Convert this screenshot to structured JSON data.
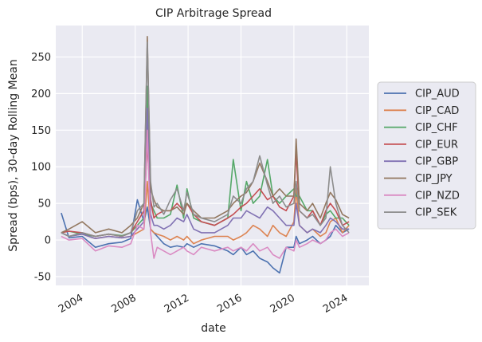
{
  "chart_data": {
    "type": "line",
    "title": "CIP Arbitrage Spread",
    "xlabel": "date",
    "ylabel": "Spread (bps), 30-day Rolling Mean",
    "xlim": [
      "2002-01-01",
      "2025-09-01"
    ],
    "ylim": [
      -62,
      293
    ],
    "grid": true,
    "legend_position": "center-right outside",
    "x_ticks": [
      "2004",
      "2008",
      "2012",
      "2016",
      "2020",
      "2024"
    ],
    "y_ticks": [
      -50,
      0,
      50,
      100,
      150,
      200,
      250
    ],
    "x_dates": [
      "2002-06-01",
      "2003-01-01",
      "2004-01-01",
      "2005-01-01",
      "2006-01-01",
      "2007-01-01",
      "2007-09-01",
      "2008-03-01",
      "2008-09-01",
      "2008-12-01",
      "2009-03-01",
      "2009-06-01",
      "2009-09-01",
      "2010-03-01",
      "2010-09-01",
      "2011-03-01",
      "2011-09-01",
      "2011-12-01",
      "2012-06-01",
      "2013-01-01",
      "2014-01-01",
      "2015-01-01",
      "2015-06-01",
      "2016-01-01",
      "2016-06-01",
      "2016-12-01",
      "2017-06-01",
      "2018-01-01",
      "2018-06-01",
      "2018-12-01",
      "2019-06-01",
      "2020-01-01",
      "2020-03-01",
      "2020-06-01",
      "2021-01-01",
      "2021-06-01",
      "2022-01-01",
      "2022-06-01",
      "2022-10-01",
      "2023-03-01",
      "2023-09-01",
      "2024-03-01"
    ],
    "series": [
      {
        "name": "CIP_AUD",
        "color": "#4c72b0",
        "values": [
          37,
          3,
          5,
          -10,
          -5,
          -3,
          2,
          55,
          25,
          45,
          15,
          10,
          5,
          -5,
          -10,
          -8,
          -10,
          -5,
          -10,
          -5,
          -8,
          -15,
          -20,
          -10,
          -20,
          -15,
          -25,
          -30,
          -38,
          -45,
          -10,
          -10,
          5,
          -5,
          0,
          5,
          -5,
          0,
          5,
          20,
          10,
          15
        ]
      },
      {
        "name": "CIP_CAD",
        "color": "#dd8452",
        "values": [
          10,
          5,
          8,
          2,
          5,
          3,
          5,
          10,
          15,
          80,
          15,
          10,
          8,
          5,
          0,
          5,
          0,
          5,
          -5,
          0,
          5,
          5,
          0,
          5,
          10,
          20,
          15,
          5,
          20,
          10,
          5,
          25,
          70,
          20,
          10,
          15,
          5,
          10,
          25,
          30,
          10,
          20
        ]
      },
      {
        "name": "CIP_CHF",
        "color": "#55a868",
        "values": [
          10,
          12,
          8,
          5,
          8,
          6,
          10,
          20,
          30,
          210,
          50,
          40,
          30,
          30,
          35,
          75,
          30,
          70,
          30,
          25,
          20,
          30,
          110,
          40,
          80,
          50,
          60,
          110,
          60,
          50,
          60,
          70,
          60,
          60,
          40,
          40,
          20,
          35,
          40,
          30,
          30,
          20
        ]
      },
      {
        "name": "CIP_EUR",
        "color": "#c44e52",
        "values": [
          10,
          12,
          10,
          5,
          8,
          5,
          10,
          25,
          40,
          130,
          55,
          30,
          35,
          40,
          40,
          50,
          40,
          50,
          35,
          25,
          20,
          30,
          35,
          45,
          50,
          60,
          70,
          55,
          60,
          45,
          40,
          60,
          120,
          40,
          30,
          40,
          20,
          40,
          50,
          40,
          20,
          25
        ]
      },
      {
        "name": "CIP_GBP",
        "color": "#8172b3",
        "values": [
          10,
          5,
          8,
          2,
          5,
          3,
          5,
          15,
          25,
          180,
          35,
          20,
          20,
          15,
          20,
          30,
          25,
          35,
          15,
          10,
          10,
          20,
          30,
          30,
          40,
          35,
          30,
          45,
          40,
          30,
          20,
          20,
          50,
          20,
          10,
          15,
          10,
          20,
          30,
          25,
          15,
          15
        ]
      },
      {
        "name": "CIP_JPY",
        "color": "#937860",
        "values": [
          10,
          15,
          25,
          10,
          15,
          10,
          20,
          30,
          50,
          278,
          70,
          55,
          45,
          40,
          40,
          45,
          35,
          50,
          40,
          30,
          30,
          40,
          50,
          60,
          65,
          80,
          105,
          80,
          60,
          70,
          60,
          60,
          138,
          50,
          40,
          50,
          30,
          50,
          65,
          55,
          35,
          30
        ]
      },
      {
        "name": "CIP_NZD",
        "color": "#da8bc3",
        "values": [
          5,
          0,
          2,
          -15,
          -8,
          -10,
          -5,
          20,
          15,
          150,
          10,
          -25,
          -10,
          -15,
          -20,
          -15,
          -10,
          -15,
          -20,
          -10,
          -15,
          -10,
          -15,
          -10,
          -15,
          -5,
          -15,
          -10,
          -20,
          -25,
          -10,
          -15,
          0,
          -10,
          -5,
          0,
          -5,
          0,
          10,
          15,
          5,
          10
        ]
      },
      {
        "name": "CIP_SEK",
        "color": "#8c8c8c",
        "values": [
          10,
          5,
          10,
          5,
          8,
          5,
          10,
          40,
          50,
          270,
          80,
          45,
          50,
          35,
          55,
          70,
          40,
          65,
          35,
          30,
          25,
          35,
          60,
          50,
          70,
          80,
          115,
          75,
          50,
          60,
          45,
          50,
          80,
          40,
          30,
          35,
          20,
          30,
          100,
          50,
          20,
          10
        ]
      }
    ]
  }
}
